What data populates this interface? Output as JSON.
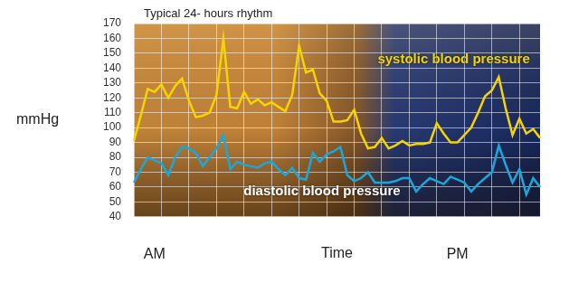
{
  "chart_data": {
    "type": "line",
    "title": "Typical 24- hours rhythm",
    "x_label": "Time",
    "y_label": "mmHg",
    "categories": [
      null,
      null,
      null,
      "AM",
      null,
      null,
      null,
      null,
      null,
      null,
      null,
      null,
      null,
      null,
      null,
      null,
      null,
      null,
      null,
      null,
      null,
      null,
      null,
      null,
      null,
      null,
      null,
      null,
      null,
      null,
      null,
      null,
      null,
      null,
      null,
      null,
      null,
      null,
      null,
      null,
      null,
      null,
      null,
      null,
      null,
      null,
      null,
      "PM",
      null,
      null,
      null,
      null,
      null,
      null,
      null,
      null,
      null,
      null,
      null,
      null
    ],
    "series": [
      {
        "name": "systolic blood pressure",
        "color": "#f5d400",
        "values": [
          91,
          108,
          126,
          124,
          129,
          120,
          128,
          133,
          118,
          107,
          108,
          110,
          122,
          160,
          114,
          113,
          124,
          116,
          119,
          115,
          117,
          114,
          111,
          122,
          155,
          137,
          139,
          123,
          118,
          104,
          104,
          105,
          112,
          96,
          86,
          87,
          93,
          86,
          88,
          91,
          88,
          89,
          89,
          90,
          103,
          96,
          90,
          90,
          95,
          100,
          110,
          121,
          125,
          134,
          113,
          95,
          106,
          96,
          99,
          93
        ]
      },
      {
        "name": "diastolic blood pressure",
        "color": "#1ba6dc",
        "values": [
          63,
          72,
          80,
          78,
          76,
          68,
          80,
          87,
          86,
          83,
          74,
          80,
          86,
          95,
          72,
          77,
          75,
          74,
          73,
          76,
          77,
          72,
          68,
          73,
          66,
          65,
          83,
          77,
          82,
          84,
          87,
          68,
          64,
          66,
          70,
          63,
          63,
          63,
          64,
          66,
          66,
          57,
          62,
          66,
          64,
          62,
          67,
          65,
          63,
          57,
          62,
          66,
          70,
          88,
          75,
          63,
          72,
          55,
          66,
          60
        ]
      }
    ],
    "ylim": [
      40,
      170
    ],
    "yticks": [
      40,
      50,
      60,
      70,
      80,
      90,
      100,
      110,
      120,
      130,
      140,
      150,
      160,
      170
    ],
    "grid": true
  }
}
